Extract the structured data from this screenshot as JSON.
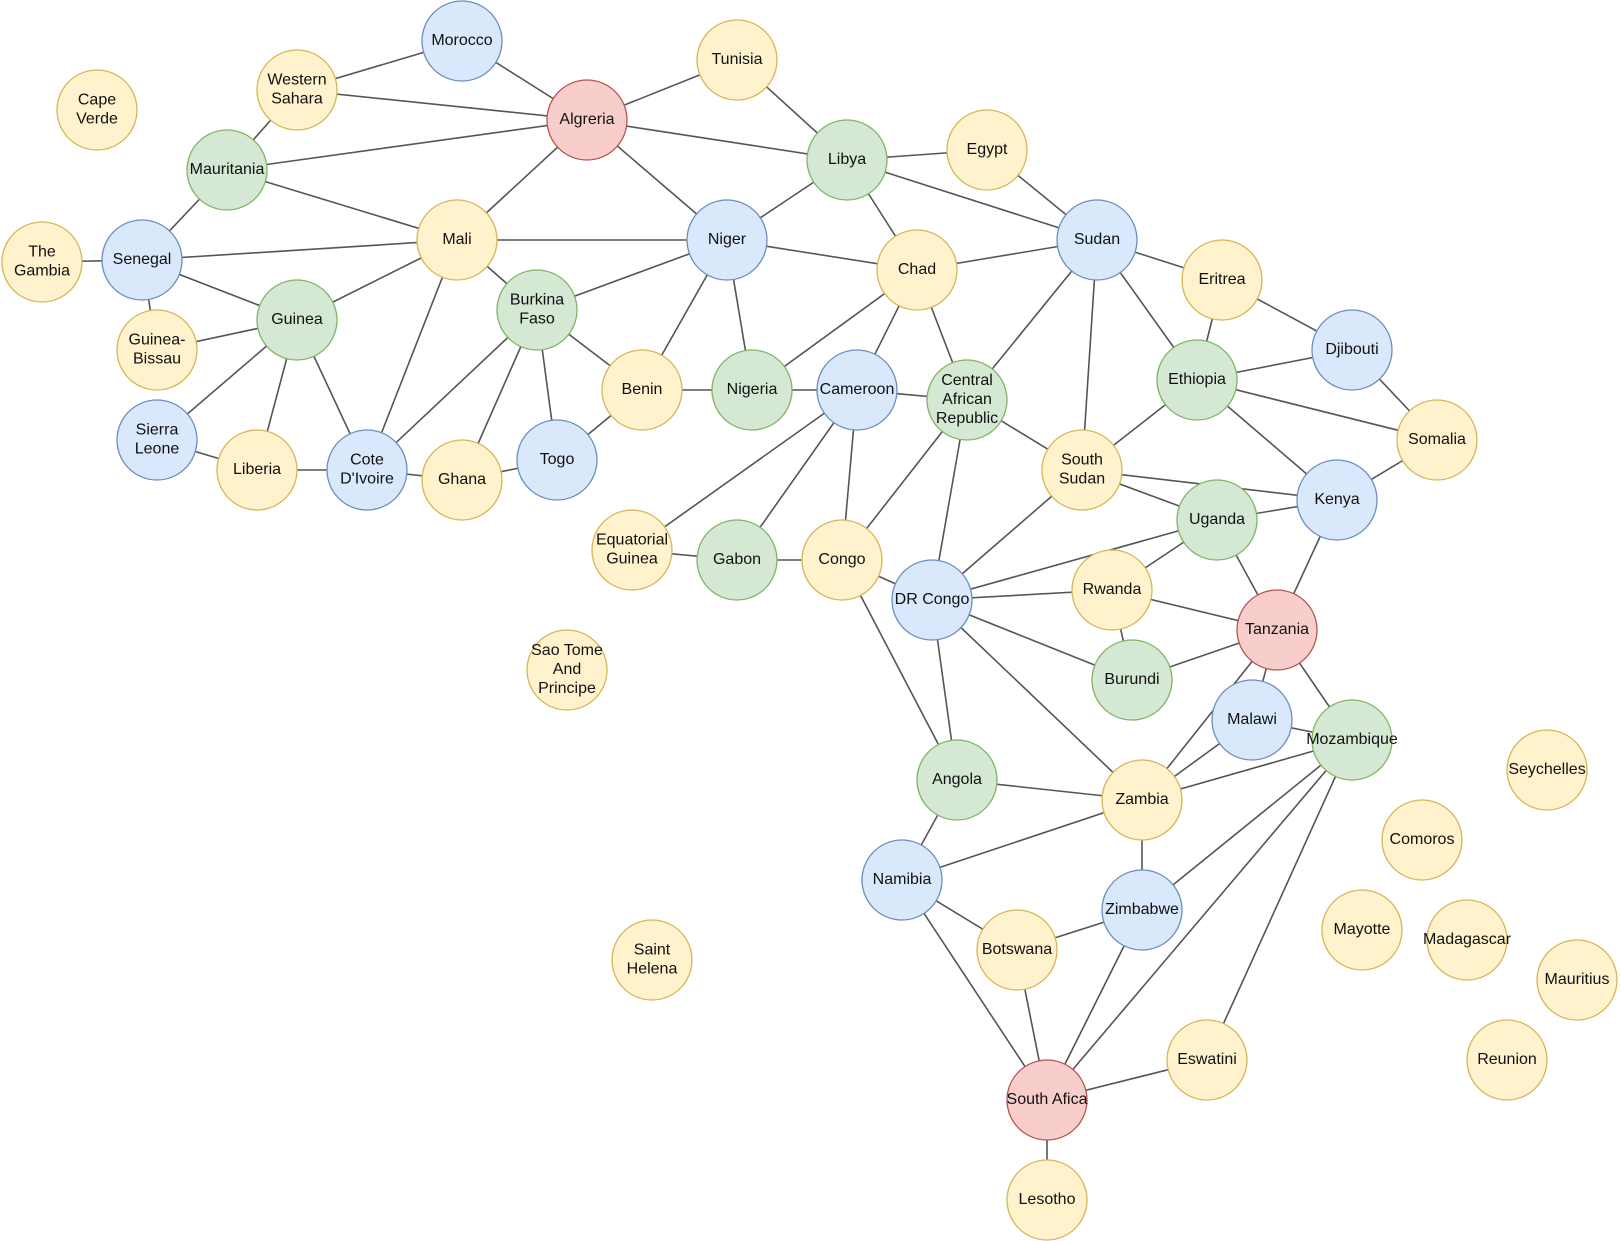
{
  "colors": {
    "blue": {
      "fill": "#dae8fc",
      "stroke": "#6c8ebf"
    },
    "green": {
      "fill": "#d5e8d4",
      "stroke": "#82b366"
    },
    "yellow": {
      "fill": "#fff2cc",
      "stroke": "#d6b656"
    },
    "red": {
      "fill": "#f8cecc",
      "stroke": "#b85450"
    }
  },
  "nodes": [
    {
      "id": "morocco",
      "label": "Morocco",
      "color": "blue"
    },
    {
      "id": "tunisia",
      "label": "Tunisia",
      "color": "yellow"
    },
    {
      "id": "western-sahara",
      "label": "Western Sahara",
      "color": "yellow"
    },
    {
      "id": "cape-verde",
      "label": "Cape Verde",
      "color": "yellow"
    },
    {
      "id": "algeria",
      "label": "Algreria",
      "color": "red"
    },
    {
      "id": "mauritania",
      "label": "Mauritania",
      "color": "green"
    },
    {
      "id": "libya",
      "label": "Libya",
      "color": "green"
    },
    {
      "id": "egypt",
      "label": "Egypt",
      "color": "yellow"
    },
    {
      "id": "the-gambia",
      "label": "The Gambia",
      "color": "yellow"
    },
    {
      "id": "senegal",
      "label": "Senegal",
      "color": "blue"
    },
    {
      "id": "mali",
      "label": "Mali",
      "color": "yellow"
    },
    {
      "id": "niger",
      "label": "Niger",
      "color": "blue"
    },
    {
      "id": "chad",
      "label": "Chad",
      "color": "yellow"
    },
    {
      "id": "sudan",
      "label": "Sudan",
      "color": "blue"
    },
    {
      "id": "eritrea",
      "label": "Eritrea",
      "color": "yellow"
    },
    {
      "id": "djibouti",
      "label": "Djibouti",
      "color": "blue"
    },
    {
      "id": "guinea",
      "label": "Guinea",
      "color": "green"
    },
    {
      "id": "burkina-faso",
      "label": "Burkina Faso",
      "color": "green"
    },
    {
      "id": "guinea-bissau",
      "label": "Guinea-Bissau",
      "color": "yellow"
    },
    {
      "id": "benin",
      "label": "Benin",
      "color": "yellow"
    },
    {
      "id": "nigeria",
      "label": "Nigeria",
      "color": "green"
    },
    {
      "id": "cameroon",
      "label": "Cameroon",
      "color": "blue"
    },
    {
      "id": "car",
      "label": "Central African Republic",
      "color": "green"
    },
    {
      "id": "ethiopia",
      "label": "Ethiopia",
      "color": "green"
    },
    {
      "id": "somalia",
      "label": "Somalia",
      "color": "yellow"
    },
    {
      "id": "sierra-leone",
      "label": "Sierra Leone",
      "color": "blue"
    },
    {
      "id": "liberia",
      "label": "Liberia",
      "color": "yellow"
    },
    {
      "id": "cote-divoire",
      "label": "Cote D'Ivoire",
      "color": "blue"
    },
    {
      "id": "ghana",
      "label": "Ghana",
      "color": "yellow"
    },
    {
      "id": "togo",
      "label": "Togo",
      "color": "blue"
    },
    {
      "id": "south-sudan",
      "label": "South Sudan",
      "color": "yellow"
    },
    {
      "id": "kenya",
      "label": "Kenya",
      "color": "blue"
    },
    {
      "id": "uganda",
      "label": "Uganda",
      "color": "green"
    },
    {
      "id": "equatorial-guinea",
      "label": "Equatorial Guinea",
      "color": "yellow"
    },
    {
      "id": "gabon",
      "label": "Gabon",
      "color": "green"
    },
    {
      "id": "congo",
      "label": "Congo",
      "color": "yellow"
    },
    {
      "id": "dr-congo",
      "label": "DR Congo",
      "color": "blue"
    },
    {
      "id": "rwanda",
      "label": "Rwanda",
      "color": "yellow"
    },
    {
      "id": "tanzania",
      "label": "Tanzania",
      "color": "red"
    },
    {
      "id": "sao-tome",
      "label": "Sao Tome And Principe",
      "color": "yellow"
    },
    {
      "id": "burundi",
      "label": "Burundi",
      "color": "green"
    },
    {
      "id": "malawi",
      "label": "Malawi",
      "color": "blue"
    },
    {
      "id": "mozambique",
      "label": "Mozambique",
      "color": "green"
    },
    {
      "id": "seychelles",
      "label": "Seychelles",
      "color": "yellow"
    },
    {
      "id": "angola",
      "label": "Angola",
      "color": "green"
    },
    {
      "id": "zambia",
      "label": "Zambia",
      "color": "yellow"
    },
    {
      "id": "comoros",
      "label": "Comoros",
      "color": "yellow"
    },
    {
      "id": "namibia",
      "label": "Namibia",
      "color": "blue"
    },
    {
      "id": "zimbabwe",
      "label": "Zimbabwe",
      "color": "blue"
    },
    {
      "id": "mayotte",
      "label": "Mayotte",
      "color": "yellow"
    },
    {
      "id": "madagascar",
      "label": "Madagascar",
      "color": "yellow"
    },
    {
      "id": "botswana",
      "label": "Botswana",
      "color": "yellow"
    },
    {
      "id": "saint-helena",
      "label": "Saint Helena",
      "color": "yellow"
    },
    {
      "id": "mauritius",
      "label": "Mauritius",
      "color": "yellow"
    },
    {
      "id": "eswatini",
      "label": "Eswatini",
      "color": "yellow"
    },
    {
      "id": "reunion",
      "label": "Reunion",
      "color": "yellow"
    },
    {
      "id": "south-africa",
      "label": "South Afica",
      "color": "red"
    },
    {
      "id": "lesotho",
      "label": "Lesotho",
      "color": "yellow"
    }
  ],
  "edges": [
    [
      "morocco",
      "western-sahara"
    ],
    [
      "morocco",
      "algeria"
    ],
    [
      "western-sahara",
      "algeria"
    ],
    [
      "western-sahara",
      "mauritania"
    ],
    [
      "algeria",
      "tunisia"
    ],
    [
      "algeria",
      "libya"
    ],
    [
      "algeria",
      "mauritania"
    ],
    [
      "algeria",
      "mali"
    ],
    [
      "algeria",
      "niger"
    ],
    [
      "tunisia",
      "libya"
    ],
    [
      "libya",
      "egypt"
    ],
    [
      "libya",
      "sudan"
    ],
    [
      "libya",
      "chad"
    ],
    [
      "libya",
      "niger"
    ],
    [
      "egypt",
      "sudan"
    ],
    [
      "mauritania",
      "senegal"
    ],
    [
      "mauritania",
      "mali"
    ],
    [
      "senegal",
      "the-gambia"
    ],
    [
      "senegal",
      "mali"
    ],
    [
      "senegal",
      "guinea"
    ],
    [
      "senegal",
      "guinea-bissau"
    ],
    [
      "mali",
      "niger"
    ],
    [
      "mali",
      "guinea"
    ],
    [
      "mali",
      "cote-divoire"
    ],
    [
      "mali",
      "burkina-faso"
    ],
    [
      "niger",
      "chad"
    ],
    [
      "niger",
      "burkina-faso"
    ],
    [
      "niger",
      "benin"
    ],
    [
      "niger",
      "nigeria"
    ],
    [
      "chad",
      "sudan"
    ],
    [
      "chad",
      "car"
    ],
    [
      "chad",
      "cameroon"
    ],
    [
      "chad",
      "nigeria"
    ],
    [
      "sudan",
      "eritrea"
    ],
    [
      "sudan",
      "ethiopia"
    ],
    [
      "sudan",
      "south-sudan"
    ],
    [
      "sudan",
      "car"
    ],
    [
      "eritrea",
      "djibouti"
    ],
    [
      "eritrea",
      "ethiopia"
    ],
    [
      "djibouti",
      "ethiopia"
    ],
    [
      "djibouti",
      "somalia"
    ],
    [
      "guinea",
      "guinea-bissau"
    ],
    [
      "guinea",
      "sierra-leone"
    ],
    [
      "guinea",
      "liberia"
    ],
    [
      "guinea",
      "cote-divoire"
    ],
    [
      "burkina-faso",
      "cote-divoire"
    ],
    [
      "burkina-faso",
      "ghana"
    ],
    [
      "burkina-faso",
      "togo"
    ],
    [
      "burkina-faso",
      "benin"
    ],
    [
      "benin",
      "togo"
    ],
    [
      "benin",
      "nigeria"
    ],
    [
      "nigeria",
      "cameroon"
    ],
    [
      "cameroon",
      "car"
    ],
    [
      "cameroon",
      "equatorial-guinea"
    ],
    [
      "cameroon",
      "gabon"
    ],
    [
      "cameroon",
      "congo"
    ],
    [
      "car",
      "south-sudan"
    ],
    [
      "car",
      "congo"
    ],
    [
      "car",
      "dr-congo"
    ],
    [
      "ethiopia",
      "somalia"
    ],
    [
      "ethiopia",
      "kenya"
    ],
    [
      "ethiopia",
      "south-sudan"
    ],
    [
      "somalia",
      "kenya"
    ],
    [
      "sierra-leone",
      "liberia"
    ],
    [
      "liberia",
      "cote-divoire"
    ],
    [
      "cote-divoire",
      "ghana"
    ],
    [
      "ghana",
      "togo"
    ],
    [
      "south-sudan",
      "kenya"
    ],
    [
      "south-sudan",
      "uganda"
    ],
    [
      "south-sudan",
      "dr-congo"
    ],
    [
      "kenya",
      "uganda"
    ],
    [
      "kenya",
      "tanzania"
    ],
    [
      "uganda",
      "dr-congo"
    ],
    [
      "uganda",
      "rwanda"
    ],
    [
      "uganda",
      "tanzania"
    ],
    [
      "equatorial-guinea",
      "gabon"
    ],
    [
      "gabon",
      "congo"
    ],
    [
      "congo",
      "dr-congo"
    ],
    [
      "congo",
      "angola"
    ],
    [
      "dr-congo",
      "rwanda"
    ],
    [
      "dr-congo",
      "burundi"
    ],
    [
      "dr-congo",
      "zambia"
    ],
    [
      "dr-congo",
      "angola"
    ],
    [
      "rwanda",
      "tanzania"
    ],
    [
      "rwanda",
      "burundi"
    ],
    [
      "tanzania",
      "burundi"
    ],
    [
      "tanzania",
      "malawi"
    ],
    [
      "tanzania",
      "mozambique"
    ],
    [
      "tanzania",
      "zambia"
    ],
    [
      "malawi",
      "mozambique"
    ],
    [
      "malawi",
      "zambia"
    ],
    [
      "mozambique",
      "zambia"
    ],
    [
      "mozambique",
      "zimbabwe"
    ],
    [
      "mozambique",
      "south-africa"
    ],
    [
      "mozambique",
      "eswatini"
    ],
    [
      "angola",
      "zambia"
    ],
    [
      "angola",
      "namibia"
    ],
    [
      "zambia",
      "namibia"
    ],
    [
      "zambia",
      "zimbabwe"
    ],
    [
      "namibia",
      "botswana"
    ],
    [
      "namibia",
      "south-africa"
    ],
    [
      "zimbabwe",
      "botswana"
    ],
    [
      "zimbabwe",
      "south-africa"
    ],
    [
      "botswana",
      "south-africa"
    ],
    [
      "eswatini",
      "south-africa"
    ],
    [
      "south-africa",
      "lesotho"
    ]
  ]
}
